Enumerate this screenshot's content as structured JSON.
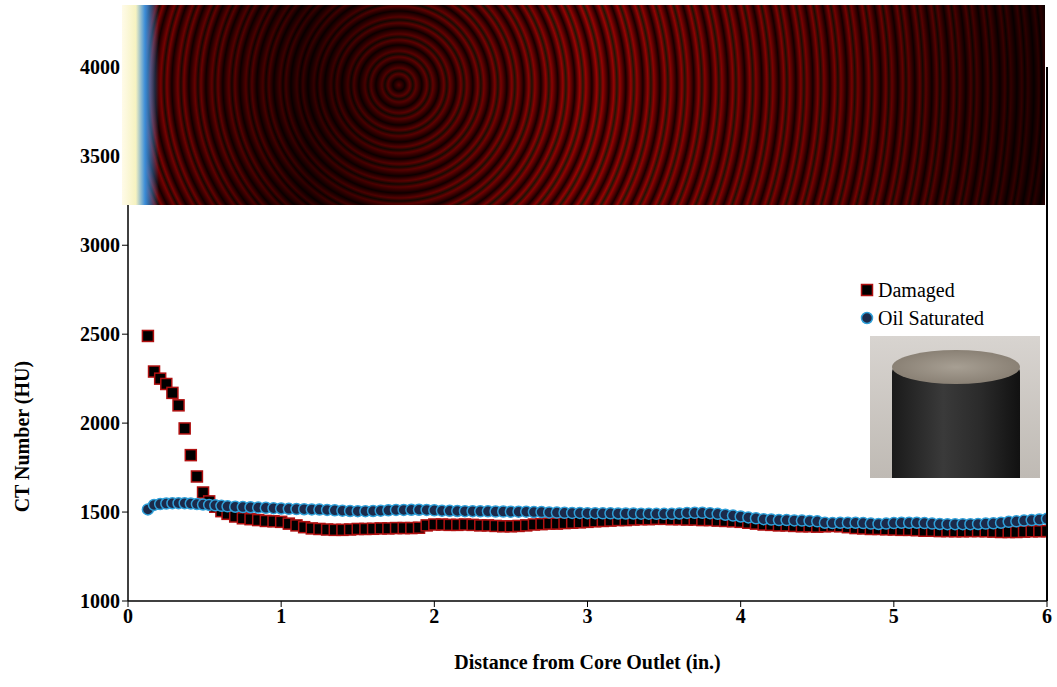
{
  "chart_data": {
    "type": "scatter",
    "x_label": "Distance from Core Outlet (in.)",
    "y_label": "CT Number (HU)",
    "xlim": [
      0,
      6
    ],
    "xticks": [
      0,
      1,
      2,
      3,
      4,
      5,
      6
    ],
    "ylim": [
      1000,
      4300
    ],
    "yticks": [
      1000,
      1500,
      2000,
      2500,
      3000,
      3500,
      4000
    ],
    "grid": false,
    "legend": "right",
    "x": [
      0.13,
      0.17,
      0.21,
      0.25,
      0.29,
      0.33,
      0.37,
      0.41,
      0.45,
      0.49,
      0.53,
      0.57,
      0.61,
      0.65,
      0.7,
      0.75,
      0.8,
      0.85,
      0.9,
      0.95,
      1.0,
      1.05,
      1.1,
      1.15,
      1.2,
      1.25,
      1.3,
      1.35,
      1.4,
      1.45,
      1.5,
      1.55,
      1.6,
      1.65,
      1.7,
      1.75,
      1.8,
      1.85,
      1.9,
      1.95,
      2.0,
      2.05,
      2.1,
      2.15,
      2.2,
      2.25,
      2.3,
      2.35,
      2.4,
      2.45,
      2.5,
      2.55,
      2.6,
      2.65,
      2.7,
      2.75,
      2.8,
      2.85,
      2.9,
      2.95,
      3.0,
      3.05,
      3.1,
      3.15,
      3.2,
      3.25,
      3.3,
      3.35,
      3.4,
      3.45,
      3.5,
      3.55,
      3.6,
      3.65,
      3.7,
      3.75,
      3.8,
      3.85,
      3.9,
      3.95,
      4.0,
      4.05,
      4.1,
      4.15,
      4.2,
      4.25,
      4.3,
      4.35,
      4.4,
      4.45,
      4.5,
      4.55,
      4.6,
      4.65,
      4.7,
      4.75,
      4.8,
      4.85,
      4.9,
      4.95,
      5.0,
      5.05,
      5.1,
      5.15,
      5.2,
      5.25,
      5.3,
      5.35,
      5.4,
      5.45,
      5.5,
      5.55,
      5.6,
      5.65,
      5.7,
      5.75,
      5.8,
      5.85,
      5.9,
      5.95,
      6.0
    ],
    "series": [
      {
        "name": "Damaged",
        "color": "#b01010",
        "marker": "square",
        "values": [
          2490,
          2290,
          2250,
          2220,
          2170,
          2100,
          1970,
          1820,
          1700,
          1610,
          1560,
          1530,
          1505,
          1490,
          1475,
          1465,
          1460,
          1455,
          1450,
          1448,
          1445,
          1435,
          1425,
          1415,
          1408,
          1405,
          1402,
          1400,
          1400,
          1402,
          1405,
          1405,
          1406,
          1408,
          1408,
          1410,
          1410,
          1410,
          1412,
          1425,
          1430,
          1430,
          1428,
          1428,
          1430,
          1428,
          1425,
          1425,
          1422,
          1420,
          1420,
          1422,
          1425,
          1430,
          1432,
          1435,
          1435,
          1438,
          1440,
          1442,
          1445,
          1448,
          1450,
          1452,
          1455,
          1455,
          1458,
          1460,
          1460,
          1462,
          1462,
          1460,
          1460,
          1458,
          1458,
          1455,
          1455,
          1452,
          1450,
          1448,
          1445,
          1440,
          1435,
          1430,
          1428,
          1425,
          1425,
          1422,
          1420,
          1420,
          1418,
          1420,
          1422,
          1420,
          1415,
          1410,
          1408,
          1405,
          1405,
          1403,
          1402,
          1400,
          1400,
          1398,
          1395,
          1395,
          1393,
          1393,
          1392,
          1392,
          1393,
          1393,
          1392,
          1390,
          1388,
          1388,
          1388,
          1390,
          1392,
          1392,
          1393
        ]
      },
      {
        "name": "Oil Saturated",
        "color": "#2e9fd8",
        "marker": "circle",
        "values": [
          1515,
          1540,
          1545,
          1548,
          1550,
          1550,
          1550,
          1548,
          1545,
          1542,
          1540,
          1538,
          1535,
          1532,
          1530,
          1528,
          1527,
          1525,
          1524,
          1522,
          1520,
          1518,
          1517,
          1516,
          1515,
          1514,
          1512,
          1510,
          1508,
          1506,
          1505,
          1505,
          1506,
          1508,
          1510,
          1512,
          1512,
          1513,
          1513,
          1512,
          1510,
          1508,
          1507,
          1506,
          1505,
          1505,
          1504,
          1504,
          1503,
          1503,
          1502,
          1502,
          1502,
          1500,
          1500,
          1498,
          1497,
          1496,
          1495,
          1495,
          1494,
          1494,
          1493,
          1493,
          1492,
          1492,
          1492,
          1491,
          1491,
          1490,
          1490,
          1490,
          1492,
          1495,
          1496,
          1496,
          1494,
          1490,
          1485,
          1480,
          1475,
          1470,
          1465,
          1460,
          1458,
          1455,
          1455,
          1453,
          1452,
          1450,
          1448,
          1440,
          1438,
          1440,
          1440,
          1440,
          1438,
          1435,
          1433,
          1435,
          1438,
          1440,
          1440,
          1440,
          1438,
          1435,
          1433,
          1432,
          1432,
          1432,
          1432,
          1433,
          1435,
          1437,
          1440,
          1445,
          1448,
          1452,
          1455,
          1458,
          1462
        ]
      }
    ]
  }
}
